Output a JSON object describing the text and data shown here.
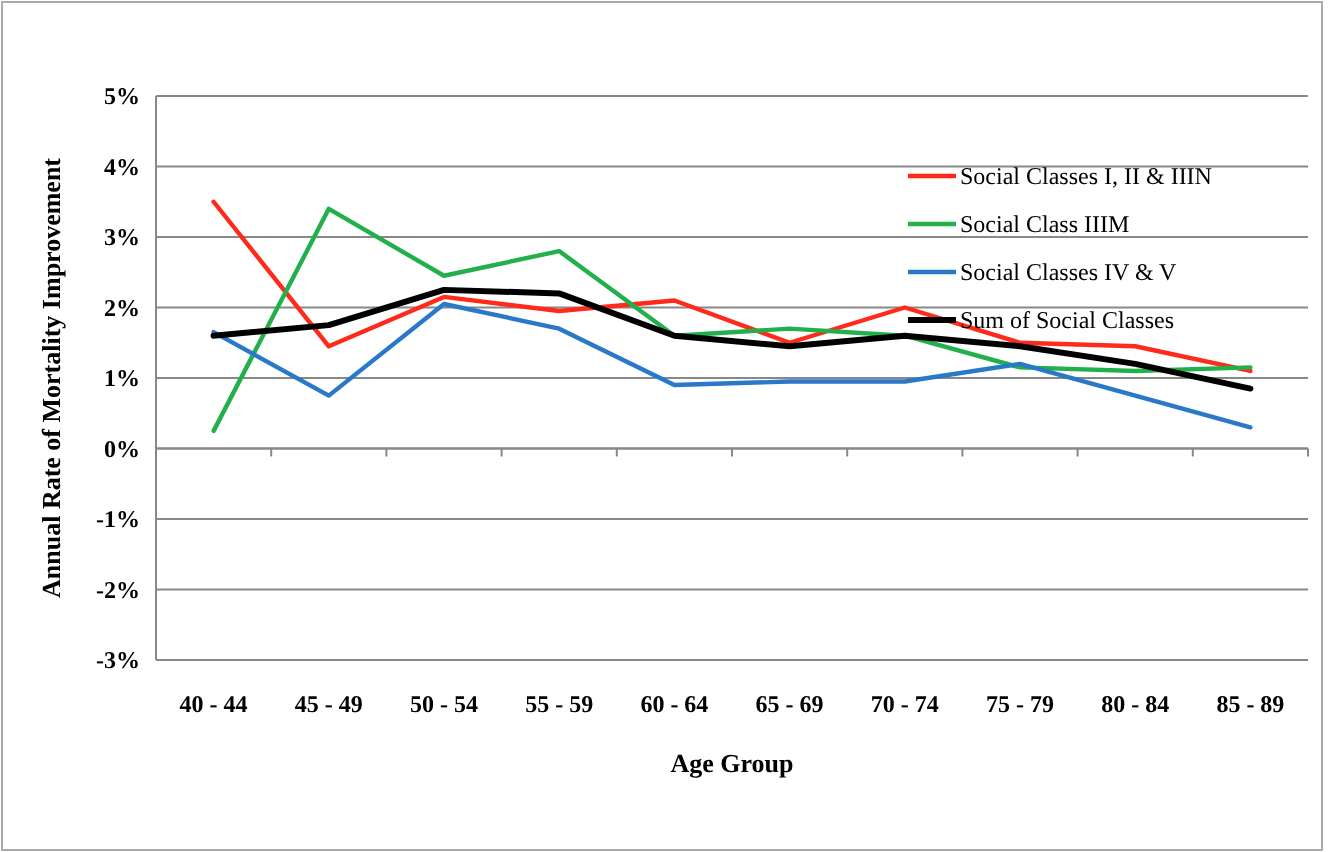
{
  "chart_data": {
    "type": "line",
    "xlabel": "Age Group",
    "ylabel": "Annual Rate of Mortality  Improvement",
    "categories": [
      "40 - 44",
      "45 - 49",
      "50 - 54",
      "55 - 59",
      "60 - 64",
      "65 - 69",
      "70 - 74",
      "75 - 79",
      "80 - 84",
      "85 - 89"
    ],
    "series": [
      {
        "name": "Social Classes I, II & IIIN",
        "color": "#ff2a1a",
        "values": [
          3.5,
          1.45,
          2.15,
          1.95,
          2.1,
          1.5,
          2.0,
          1.5,
          1.45,
          1.1
        ]
      },
      {
        "name": "Social Class IIIM",
        "color": "#22b04c",
        "values": [
          0.25,
          3.4,
          2.45,
          2.8,
          1.6,
          1.7,
          1.6,
          1.15,
          1.1,
          1.15
        ]
      },
      {
        "name": "Social Classes IV & V",
        "color": "#2a78c8",
        "values": [
          1.65,
          0.75,
          2.05,
          1.7,
          0.9,
          0.95,
          0.95,
          1.2,
          0.75,
          0.3
        ]
      },
      {
        "name": "Sum of Social Classes",
        "color": "#000000",
        "values": [
          1.6,
          1.75,
          2.25,
          2.2,
          1.6,
          1.45,
          1.6,
          1.45,
          1.2,
          0.85
        ]
      }
    ],
    "ylim": [
      -3,
      5
    ],
    "yticks": [
      {
        "value": -3,
        "label": "-3%"
      },
      {
        "value": -2,
        "label": "-2%"
      },
      {
        "value": -1,
        "label": "-1%"
      },
      {
        "value": 0,
        "label": "0%"
      },
      {
        "value": 1,
        "label": "1%"
      },
      {
        "value": 2,
        "label": "2%"
      },
      {
        "value": 3,
        "label": "3%"
      },
      {
        "value": 4,
        "label": "4%"
      },
      {
        "value": 5,
        "label": "5%"
      }
    ],
    "grid": "y",
    "legend": "top right",
    "marker": "none",
    "line_style": "solid"
  }
}
